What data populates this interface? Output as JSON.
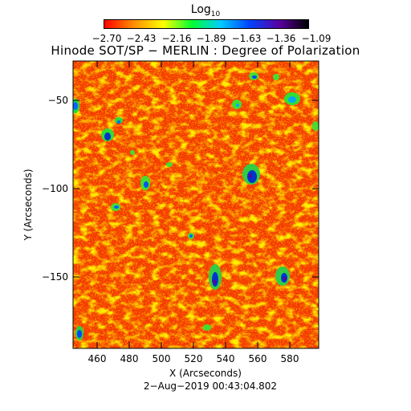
{
  "colorbar": {
    "label_main": "Log",
    "label_sub": "10",
    "ticks": [
      "−2.70",
      "−2.43",
      "−2.16",
      "−1.89",
      "−1.63",
      "−1.36",
      "−1.09"
    ],
    "colors": [
      "#ff0000",
      "#ff8a00",
      "#ffff00",
      "#00ff33",
      "#00ccff",
      "#0044ff",
      "#5a00a0",
      "#000000"
    ]
  },
  "title": "Hinode SOT/SP − MERLIN : Degree of Polarization",
  "x_axis": {
    "label": "X (Arcseconds)",
    "ticks": [
      "460",
      "480",
      "500",
      "520",
      "540",
      "560",
      "580"
    ],
    "range": [
      445,
      598
    ]
  },
  "y_axis": {
    "label": "Y (Arcseconds)",
    "ticks": [
      "−50",
      "−100",
      "−150"
    ],
    "range": [
      -192,
      -30
    ]
  },
  "timestamp": "2−Aug−2019 00:43:04.802",
  "image": {
    "colormap": "rainbow (red low, black high)",
    "background_color": "#f43a00"
  }
}
